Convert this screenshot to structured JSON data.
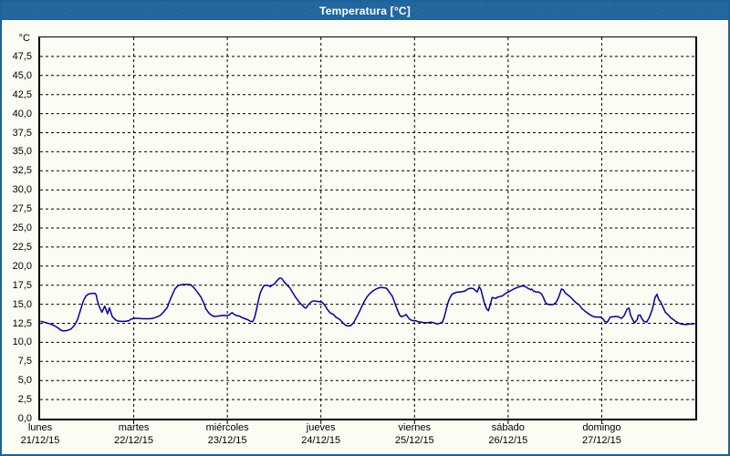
{
  "window": {
    "title": "Temperatura [°C]"
  },
  "colors": {
    "titlebar_blue": "#1d639a",
    "border_blue": "#1a639c",
    "background": "#fbfdf4",
    "grid": "#000000",
    "line_navy": "#0000a0",
    "title_text": "#ffffff",
    "label_text": "#000000"
  },
  "chart_data": {
    "type": "line",
    "title": "Temperatura [°C]",
    "y_unit_label": "°C",
    "y_axis": {
      "min": 0,
      "max": 50,
      "tick_step": 2.5,
      "tick_labels": [
        "0,0",
        "2,5",
        "5,0",
        "7,5",
        "10,0",
        "12,5",
        "15,0",
        "17,5",
        "20,0",
        "22,5",
        "25,0",
        "27,5",
        "30,0",
        "32,5",
        "35,0",
        "37,5",
        "40,0",
        "42,5",
        "45,0",
        "47,5"
      ],
      "gridlines": "dashed"
    },
    "x_axis": {
      "span_days": 7,
      "gridlines": "dashed",
      "days": [
        {
          "name": "lunes",
          "date": "21/12/15"
        },
        {
          "name": "martes",
          "date": "22/12/15"
        },
        {
          "name": "miércoles",
          "date": "23/12/15"
        },
        {
          "name": "jueves",
          "date": "24/12/15"
        },
        {
          "name": "viernes",
          "date": "25/12/15"
        },
        {
          "name": "sábado",
          "date": "26/12/15"
        },
        {
          "name": "domingo",
          "date": "27/12/15"
        }
      ]
    },
    "series": [
      {
        "name": "Temperatura",
        "color": "#0000a0",
        "x_unit": "days_since_21_12_15",
        "y_unit": "°C",
        "points": [
          [
            0.01,
            12.75
          ],
          [
            0.06,
            12.6
          ],
          [
            0.11,
            12.4
          ],
          [
            0.15,
            12.2
          ],
          [
            0.19,
            11.9
          ],
          [
            0.22,
            11.6
          ],
          [
            0.25,
            11.5
          ],
          [
            0.29,
            11.55
          ],
          [
            0.33,
            11.75
          ],
          [
            0.37,
            12.3
          ],
          [
            0.4,
            13.0
          ],
          [
            0.43,
            14.2
          ],
          [
            0.46,
            15.4
          ],
          [
            0.49,
            16.1
          ],
          [
            0.52,
            16.35
          ],
          [
            0.55,
            16.4
          ],
          [
            0.57,
            16.45
          ],
          [
            0.59,
            16.4
          ],
          [
            0.6,
            16.2
          ],
          [
            0.61,
            15.5
          ],
          [
            0.62,
            15.15
          ],
          [
            0.63,
            14.75
          ],
          [
            0.66,
            13.95
          ],
          [
            0.69,
            14.75
          ],
          [
            0.72,
            13.75
          ],
          [
            0.74,
            14.55
          ],
          [
            0.77,
            13.4
          ],
          [
            0.8,
            13.0
          ],
          [
            0.83,
            12.8
          ],
          [
            0.87,
            12.75
          ],
          [
            0.91,
            12.75
          ],
          [
            0.95,
            12.85
          ],
          [
            0.97,
            13.05
          ],
          [
            1.01,
            13.15
          ],
          [
            1.05,
            13.15
          ],
          [
            1.09,
            13.1
          ],
          [
            1.13,
            13.1
          ],
          [
            1.17,
            13.1
          ],
          [
            1.2,
            13.15
          ],
          [
            1.24,
            13.3
          ],
          [
            1.28,
            13.5
          ],
          [
            1.32,
            14.0
          ],
          [
            1.36,
            14.6
          ],
          [
            1.38,
            15.3
          ],
          [
            1.41,
            16.2
          ],
          [
            1.44,
            17.0
          ],
          [
            1.47,
            17.4
          ],
          [
            1.5,
            17.55
          ],
          [
            1.54,
            17.6
          ],
          [
            1.58,
            17.6
          ],
          [
            1.61,
            17.55
          ],
          [
            1.64,
            17.2
          ],
          [
            1.68,
            16.6
          ],
          [
            1.72,
            15.9
          ],
          [
            1.75,
            15.1
          ],
          [
            1.77,
            14.4
          ],
          [
            1.8,
            13.9
          ],
          [
            1.83,
            13.55
          ],
          [
            1.86,
            13.4
          ],
          [
            1.9,
            13.45
          ],
          [
            1.93,
            13.5
          ],
          [
            1.96,
            13.55
          ],
          [
            1.99,
            13.5
          ],
          [
            2.02,
            13.6
          ],
          [
            2.05,
            13.9
          ],
          [
            2.07,
            13.7
          ],
          [
            2.1,
            13.5
          ],
          [
            2.13,
            13.45
          ],
          [
            2.15,
            13.3
          ],
          [
            2.19,
            13.1
          ],
          [
            2.22,
            12.95
          ],
          [
            2.25,
            12.75
          ],
          [
            2.27,
            12.7
          ],
          [
            2.29,
            13.2
          ],
          [
            2.31,
            14.2
          ],
          [
            2.33,
            15.4
          ],
          [
            2.35,
            16.4
          ],
          [
            2.37,
            17.0
          ],
          [
            2.39,
            17.4
          ],
          [
            2.41,
            17.5
          ],
          [
            2.44,
            17.45
          ],
          [
            2.46,
            17.3
          ],
          [
            2.48,
            17.5
          ],
          [
            2.51,
            17.75
          ],
          [
            2.53,
            18.1
          ],
          [
            2.56,
            18.45
          ],
          [
            2.58,
            18.4
          ],
          [
            2.61,
            17.9
          ],
          [
            2.64,
            17.5
          ],
          [
            2.67,
            17.1
          ],
          [
            2.7,
            16.5
          ],
          [
            2.73,
            15.9
          ],
          [
            2.76,
            15.4
          ],
          [
            2.79,
            15.0
          ],
          [
            2.82,
            14.6
          ],
          [
            2.84,
            14.5
          ],
          [
            2.87,
            15.0
          ],
          [
            2.9,
            15.35
          ],
          [
            2.93,
            15.45
          ],
          [
            2.95,
            15.4
          ],
          [
            2.98,
            15.35
          ],
          [
            3.01,
            15.3
          ],
          [
            3.04,
            14.9
          ],
          [
            3.07,
            14.3
          ],
          [
            3.1,
            13.85
          ],
          [
            3.13,
            13.7
          ],
          [
            3.16,
            13.3
          ],
          [
            3.19,
            13.1
          ],
          [
            3.21,
            12.9
          ],
          [
            3.24,
            12.5
          ],
          [
            3.27,
            12.2
          ],
          [
            3.3,
            12.15
          ],
          [
            3.32,
            12.2
          ],
          [
            3.35,
            12.6
          ],
          [
            3.38,
            13.3
          ],
          [
            3.41,
            14.0
          ],
          [
            3.44,
            14.8
          ],
          [
            3.47,
            15.5
          ],
          [
            3.5,
            16.1
          ],
          [
            3.53,
            16.5
          ],
          [
            3.56,
            16.8
          ],
          [
            3.59,
            17.0
          ],
          [
            3.62,
            17.15
          ],
          [
            3.65,
            17.2
          ],
          [
            3.68,
            17.15
          ],
          [
            3.7,
            17.1
          ],
          [
            3.73,
            16.6
          ],
          [
            3.76,
            16.1
          ],
          [
            3.78,
            15.5
          ],
          [
            3.8,
            14.8
          ],
          [
            3.82,
            14.2
          ],
          [
            3.84,
            13.6
          ],
          [
            3.86,
            13.35
          ],
          [
            3.89,
            13.5
          ],
          [
            3.91,
            13.65
          ],
          [
            3.93,
            13.3
          ],
          [
            3.95,
            13.0
          ],
          [
            3.98,
            12.85
          ],
          [
            4.01,
            12.85
          ],
          [
            4.04,
            12.7
          ],
          [
            4.07,
            12.65
          ],
          [
            4.1,
            12.6
          ],
          [
            4.14,
            12.6
          ],
          [
            4.18,
            12.65
          ],
          [
            4.21,
            12.55
          ],
          [
            4.24,
            12.4
          ],
          [
            4.27,
            12.5
          ],
          [
            4.3,
            12.7
          ],
          [
            4.32,
            13.4
          ],
          [
            4.34,
            14.4
          ],
          [
            4.36,
            15.3
          ],
          [
            4.38,
            15.9
          ],
          [
            4.4,
            16.3
          ],
          [
            4.43,
            16.5
          ],
          [
            4.46,
            16.6
          ],
          [
            4.48,
            16.6
          ],
          [
            4.51,
            16.65
          ],
          [
            4.54,
            16.75
          ],
          [
            4.57,
            17.0
          ],
          [
            4.6,
            17.1
          ],
          [
            4.63,
            17.05
          ],
          [
            4.65,
            16.8
          ],
          [
            4.67,
            16.6
          ],
          [
            4.69,
            17.3
          ],
          [
            4.71,
            16.9
          ],
          [
            4.73,
            15.9
          ],
          [
            4.75,
            15.0
          ],
          [
            4.77,
            14.4
          ],
          [
            4.79,
            14.15
          ],
          [
            4.81,
            15.0
          ],
          [
            4.83,
            15.9
          ],
          [
            4.85,
            15.8
          ],
          [
            4.87,
            15.75
          ],
          [
            4.88,
            15.9
          ],
          [
            4.91,
            16.0
          ],
          [
            4.94,
            16.1
          ],
          [
            4.97,
            16.4
          ],
          [
            5.0,
            16.6
          ],
          [
            5.03,
            16.8
          ],
          [
            5.06,
            17.0
          ],
          [
            5.09,
            17.15
          ],
          [
            5.12,
            17.3
          ],
          [
            5.15,
            17.4
          ],
          [
            5.18,
            17.35
          ],
          [
            5.21,
            17.1
          ],
          [
            5.24,
            16.9
          ],
          [
            5.25,
            17.0
          ],
          [
            5.27,
            16.75
          ],
          [
            5.3,
            16.6
          ],
          [
            5.33,
            16.6
          ],
          [
            5.36,
            16.3
          ],
          [
            5.38,
            15.8
          ],
          [
            5.4,
            15.2
          ],
          [
            5.42,
            15.0
          ],
          [
            5.45,
            14.95
          ],
          [
            5.48,
            14.95
          ],
          [
            5.51,
            15.2
          ],
          [
            5.54,
            15.9
          ],
          [
            5.57,
            17.0
          ],
          [
            5.59,
            16.9
          ],
          [
            5.61,
            16.5
          ],
          [
            5.64,
            16.2
          ],
          [
            5.67,
            15.9
          ],
          [
            5.7,
            15.5
          ],
          [
            5.73,
            15.15
          ],
          [
            5.76,
            14.9
          ],
          [
            5.79,
            14.4
          ],
          [
            5.82,
            14.1
          ],
          [
            5.86,
            13.75
          ],
          [
            5.89,
            13.5
          ],
          [
            5.92,
            13.35
          ],
          [
            5.96,
            13.3
          ],
          [
            5.99,
            13.3
          ],
          [
            6.02,
            13.0
          ],
          [
            6.03,
            12.75
          ],
          [
            6.06,
            12.65
          ],
          [
            6.09,
            13.3
          ],
          [
            6.12,
            13.35
          ],
          [
            6.15,
            13.4
          ],
          [
            6.18,
            13.35
          ],
          [
            6.21,
            13.15
          ],
          [
            6.24,
            13.5
          ],
          [
            6.27,
            14.35
          ],
          [
            6.29,
            14.5
          ],
          [
            6.31,
            13.5
          ],
          [
            6.33,
            13.0
          ],
          [
            6.35,
            12.55
          ],
          [
            6.38,
            13.0
          ],
          [
            6.39,
            13.55
          ],
          [
            6.41,
            13.6
          ],
          [
            6.43,
            13.1
          ],
          [
            6.45,
            12.75
          ],
          [
            6.48,
            12.65
          ],
          [
            6.51,
            13.3
          ],
          [
            6.54,
            14.3
          ],
          [
            6.57,
            15.9
          ],
          [
            6.59,
            16.3
          ],
          [
            6.61,
            15.6
          ],
          [
            6.63,
            15.3
          ],
          [
            6.65,
            14.75
          ],
          [
            6.68,
            13.95
          ],
          [
            6.71,
            13.6
          ],
          [
            6.74,
            13.2
          ],
          [
            6.77,
            12.95
          ],
          [
            6.79,
            12.75
          ],
          [
            6.82,
            12.55
          ],
          [
            6.85,
            12.4
          ],
          [
            6.88,
            12.35
          ],
          [
            6.91,
            12.35
          ],
          [
            6.94,
            12.4
          ],
          [
            6.97,
            12.4
          ],
          [
            6.99,
            12.45
          ]
        ]
      }
    ]
  }
}
